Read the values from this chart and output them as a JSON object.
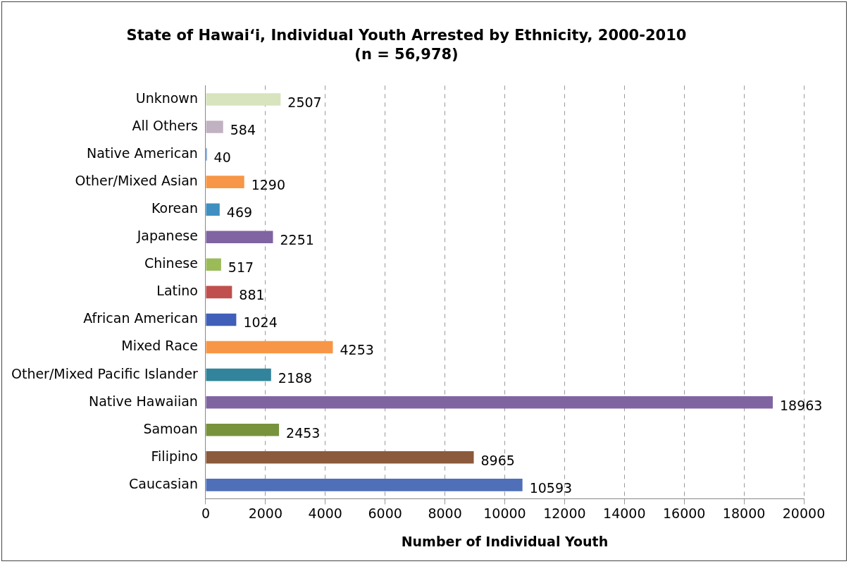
{
  "chart_data": {
    "type": "bar",
    "orientation": "horizontal",
    "title": "State of Hawaiʻi, Individual Youth Arrested by Ethnicity, 2000-2010",
    "subtitle": "(n = 56,978)",
    "xlabel": "Number of Individual Youth",
    "categories": [
      "Unknown",
      "All Others",
      "Native American",
      "Other/Mixed Asian",
      "Korean",
      "Japanese",
      "Chinese",
      "Latino",
      "African American",
      "Mixed Race",
      "Other/Mixed Pacific Islander",
      "Native Hawaiian",
      "Samoan",
      "Filipino",
      "Caucasian"
    ],
    "values": [
      2507,
      584,
      40,
      1290,
      469,
      2251,
      517,
      881,
      1024,
      4253,
      2188,
      18963,
      2453,
      8965,
      10593
    ],
    "colors": [
      "#d7e4bd",
      "#c0b2c0",
      "#4f81bd",
      "#f79646",
      "#3f8fc0",
      "#8064a2",
      "#9bbb59",
      "#c0504d",
      "#3f5fb8",
      "#f79646",
      "#31849b",
      "#8064a2",
      "#77933c",
      "#8b5a3c",
      "#4f6fb8"
    ],
    "xlim": [
      0,
      20000
    ],
    "xticks": [
      0,
      2000,
      4000,
      6000,
      8000,
      10000,
      12000,
      14000,
      16000,
      18000,
      20000
    ],
    "grid": "x",
    "data_labels": true,
    "legend": false
  }
}
